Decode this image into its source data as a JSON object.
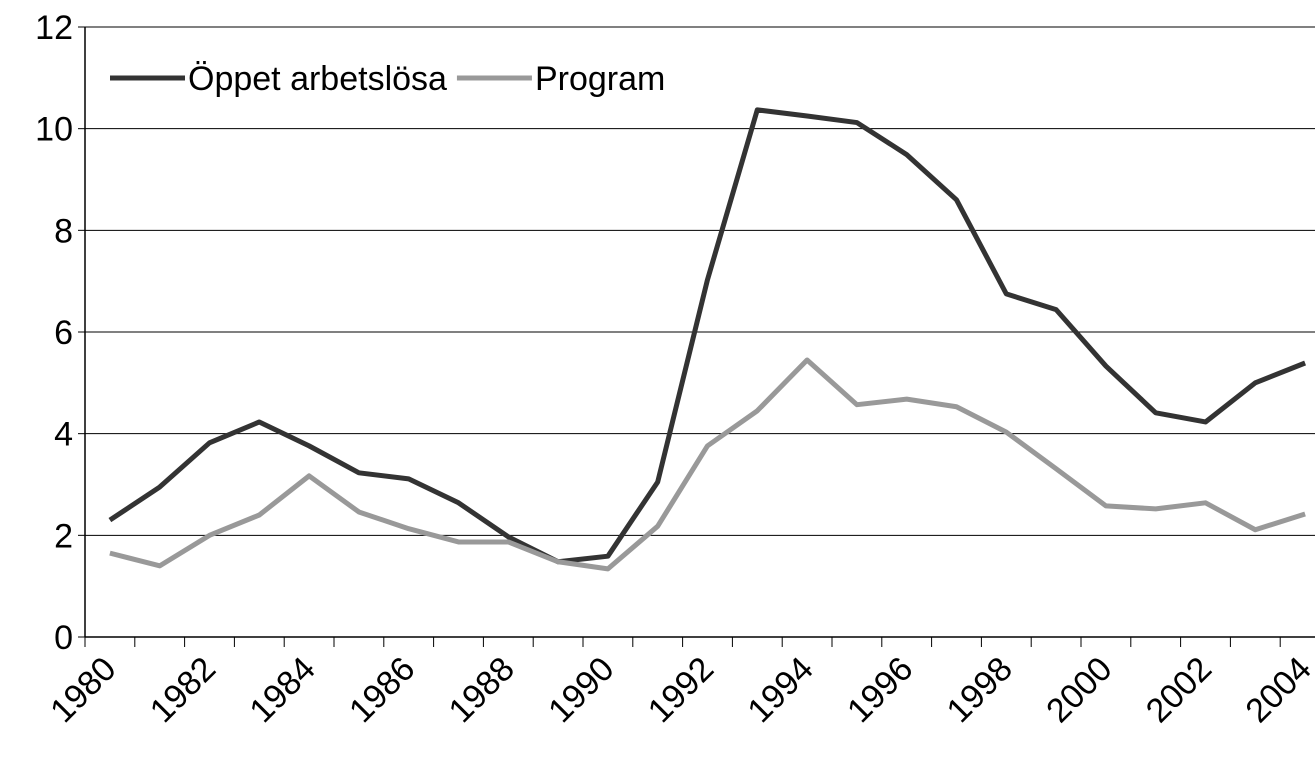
{
  "chart_data": {
    "type": "line",
    "categories": [
      "1980",
      null,
      "1982",
      null,
      "1984",
      null,
      "1986",
      null,
      "1988",
      null,
      "1990",
      null,
      "1992",
      null,
      "1994",
      null,
      "1996",
      null,
      "1998",
      null,
      "2000",
      null,
      "2002",
      null,
      "2004"
    ],
    "series": [
      {
        "name": "Öppet arbetslösa",
        "color": "#333333",
        "values": [
          2.3,
          2.95,
          3.82,
          4.23,
          3.76,
          3.23,
          3.11,
          2.64,
          1.97,
          1.48,
          1.59,
          3.05,
          7.03,
          10.37,
          10.25,
          10.12,
          9.49,
          8.6,
          6.75,
          6.44,
          5.33,
          4.41,
          4.23,
          5.0,
          5.39
        ]
      },
      {
        "name": "Program",
        "color": "#999999",
        "values": [
          1.65,
          1.4,
          2.0,
          2.4,
          3.17,
          2.46,
          2.13,
          1.87,
          1.87,
          1.48,
          1.34,
          2.18,
          3.76,
          4.45,
          5.45,
          4.57,
          4.68,
          4.53,
          4.03,
          3.31,
          2.58,
          2.52,
          2.64,
          2.11,
          2.42
        ]
      }
    ],
    "ylim": [
      0,
      12
    ],
    "yticks": [
      0,
      2,
      4,
      6,
      8,
      10,
      12
    ],
    "grid": true,
    "legend": "top-left"
  }
}
